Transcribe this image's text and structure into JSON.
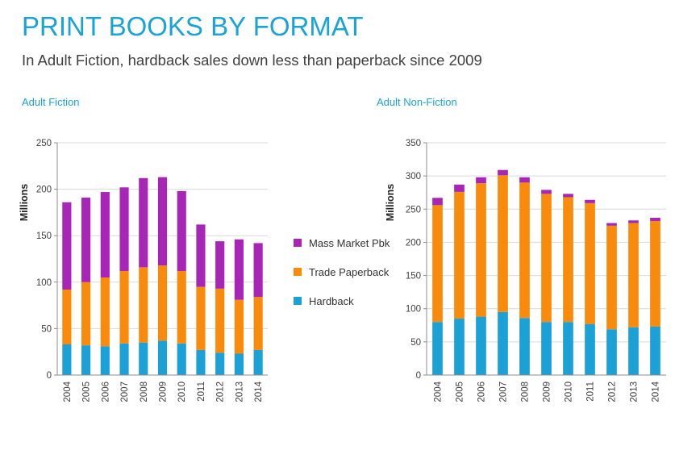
{
  "header": {
    "title": "PRINT BOOKS BY FORMAT",
    "subtitle": "In Adult Fiction, hardback sales down less than paperback since 2009"
  },
  "colors": {
    "hardback": "#1ba1d6",
    "trade_paperback": "#f98b0c",
    "mass_market": "#a726b6",
    "grid": "#d9d9d9",
    "axis": "#8c8c8c"
  },
  "legend": {
    "items": [
      {
        "label": "Mass Market Pbk",
        "color": "#a726b6"
      },
      {
        "label": "Trade Paperback",
        "color": "#f98b0c"
      },
      {
        "label": "Hardback",
        "color": "#1ba1d6"
      }
    ]
  },
  "chart_data": [
    {
      "type": "bar",
      "stacked": true,
      "title": "Adult Fiction",
      "ylabel": "Millions",
      "xlabel": "",
      "ylim": [
        0,
        250
      ],
      "yticks": [
        0,
        50,
        100,
        150,
        200,
        250
      ],
      "grid": true,
      "categories": [
        "2004",
        "2005",
        "2006",
        "2007",
        "2008",
        "2009",
        "2010",
        "2011",
        "2012",
        "2013",
        "2014"
      ],
      "series": [
        {
          "name": "Hardback",
          "values": [
            33,
            32,
            31,
            34,
            35,
            37,
            34,
            27,
            24,
            23,
            27
          ]
        },
        {
          "name": "Trade Paperback",
          "values": [
            59,
            68,
            74,
            78,
            81,
            81,
            78,
            68,
            69,
            58,
            57
          ]
        },
        {
          "name": "Mass Market Pbk",
          "values": [
            94,
            91,
            92,
            90,
            96,
            95,
            86,
            67,
            51,
            65,
            58
          ]
        }
      ]
    },
    {
      "type": "bar",
      "stacked": true,
      "title": "Adult Non-Fiction",
      "ylabel": "Millions",
      "xlabel": "",
      "ylim": [
        0,
        350
      ],
      "yticks": [
        0,
        50,
        100,
        150,
        200,
        250,
        300,
        350
      ],
      "grid": true,
      "categories": [
        "2004",
        "2005",
        "2006",
        "2007",
        "2008",
        "2009",
        "2010",
        "2011",
        "2012",
        "2013",
        "2014"
      ],
      "series": [
        {
          "name": "Hardback",
          "values": [
            80,
            85,
            88,
            95,
            86,
            80,
            80,
            77,
            69,
            72,
            73
          ]
        },
        {
          "name": "Trade Paperback",
          "values": [
            176,
            191,
            201,
            206,
            204,
            193,
            188,
            182,
            156,
            157,
            159
          ]
        },
        {
          "name": "Mass Market Pbk",
          "values": [
            11,
            11,
            9,
            8,
            8,
            6,
            5,
            5,
            4,
            4,
            5
          ]
        }
      ]
    }
  ]
}
